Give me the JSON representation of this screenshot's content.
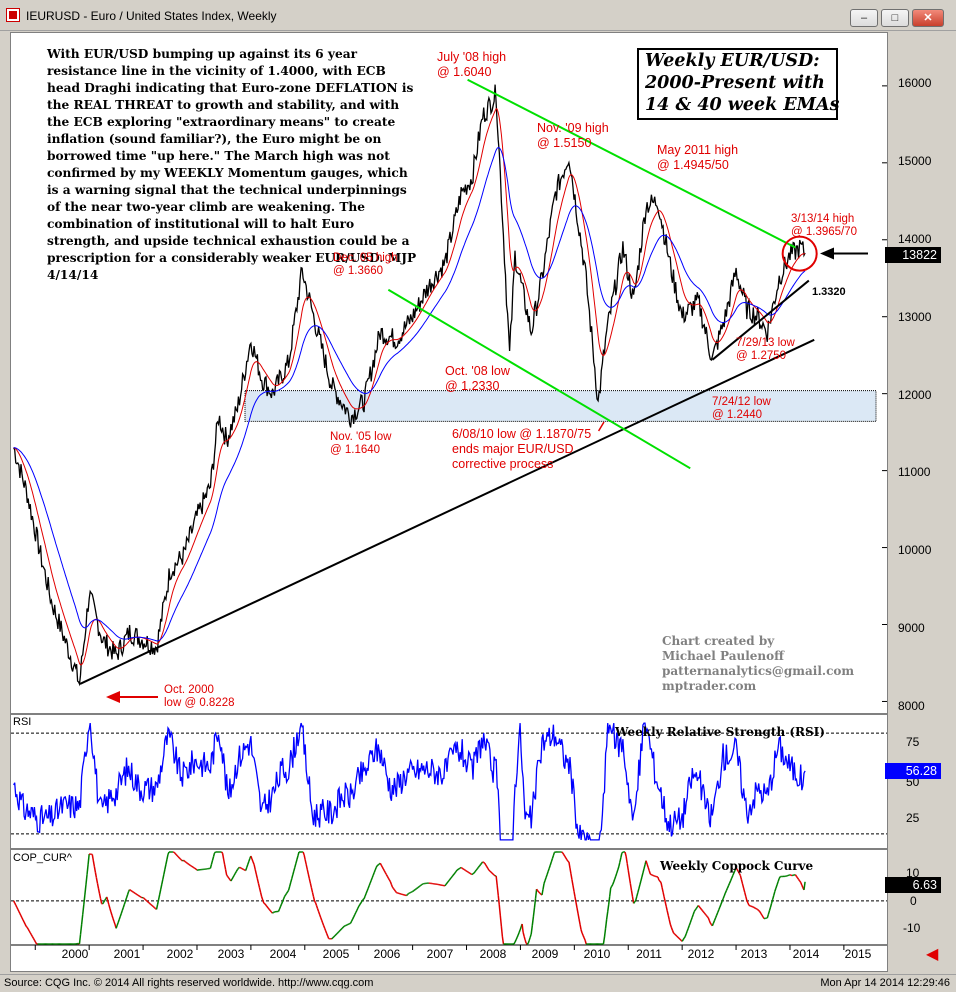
{
  "window": {
    "title": "IEURUSD - Euro / United States Index, Weekly",
    "buttons": [
      "minimize",
      "maximize",
      "close"
    ]
  },
  "status": {
    "left": "Source: CQG Inc. © 2014 All rights reserved worldwide. http://www.cqg.com",
    "right": "Mon Apr 14 2014 12:29:46"
  },
  "commentary": {
    "text": "With EUR/USD bumping up against its 6 year resistance line in the vicinity of 1.4000, with ECB head Draghi indicating that Euro-zone DEFLATION is the REAL THREAT to growth and stability, and with the ECB exploring \"extraordinary means\" to create inflation (sound familiar?), the Euro might be on borrowed time \"up here.\"  The March high was not confirmed by my WEEKLY Momentum gauges, which is a warning signal that the technical underpinnings of the near two-year climb are weakening. The combination of institutional will to halt Euro strength, and upside technical exhaustion could be a prescription for a considerably weaker EUR/USD. MJP  4/14/14"
  },
  "chart_title": {
    "line1": "Weekly EUR/USD:",
    "line2": "2000-Present with",
    "line3": "14 & 40 week EMAs"
  },
  "credit": {
    "line1": "Chart created by",
    "line2": "Michael Paulenoff",
    "line3": "patternanalytics@gmail.com",
    "line4": "mptrader.com"
  },
  "annotations": {
    "jul08": [
      "July '08 high",
      "@ 1.6040"
    ],
    "nov09": [
      "Nov. '09 high",
      "@ 1.5150"
    ],
    "may11": [
      "May 2011 high",
      "@ 1.4945/50"
    ],
    "mar14": [
      "3/13/14 high",
      "@ 1.3965/70"
    ],
    "dec05": [
      "Dec. 05 high",
      "@ 1.3660"
    ],
    "oct08": [
      "Oct. '08 low",
      "@ 1.2330"
    ],
    "jun10": [
      "6/08/10 low @ 1.1870/75",
      "ends major EUR/USD",
      "corrective process"
    ],
    "nov05": [
      "Nov. '05 low",
      "@ 1.1640"
    ],
    "jul13": [
      "7/29/13 low",
      "@ 1.2750"
    ],
    "jul12": [
      "7/24/12 low",
      "@ 1.2440"
    ],
    "oct00": [
      "Oct. 2000",
      "low @ 0.8228"
    ],
    "trend_value": "1.3320"
  },
  "panels": {
    "rsi": {
      "name": "RSI",
      "title": "Weekly Relative Strength (RSI)",
      "value": "56.28",
      "ticks": [
        "75",
        "50",
        "25"
      ]
    },
    "coppock": {
      "name": "COP_CUR^",
      "title": "Weekly Coppock Curve",
      "value": "6.63",
      "ticks": [
        "10",
        "0",
        "-10"
      ]
    }
  },
  "colors": {
    "price_bars": "#000000",
    "ema14": "#e00000",
    "ema40": "#0000ff",
    "resistance": "#00e000",
    "support": "#000000",
    "rsi_line": "#0000ff",
    "coppock_up": "#008000",
    "coppock_down": "#e00000",
    "annotation": "#e00000",
    "zone_fill": "#dbe8f5"
  },
  "chart_data": {
    "type": "line",
    "title": "Weekly EUR/USD: 2000-Present with 14 & 40 week EMAs",
    "xlabel": "",
    "ylabel": "",
    "x_ticks": [
      "2000",
      "2001",
      "2002",
      "2003",
      "2004",
      "2005",
      "2006",
      "2007",
      "2008",
      "2009",
      "2010",
      "2011",
      "2012",
      "2013",
      "2014",
      "2015"
    ],
    "y_ticks": [
      "16000",
      "15000",
      "14000",
      "13000",
      "12000",
      "11000",
      "10000",
      "9000",
      "8000"
    ],
    "ylim": [
      7850,
      16700
    ],
    "last_price": "13822",
    "series": [
      {
        "name": "EUR/USD (×10000)",
        "x": [
          1999.6,
          1999.85,
          2000.1,
          2000.3,
          2000.5,
          2000.75,
          2000.82,
          2001.0,
          2001.25,
          2001.5,
          2001.75,
          2002.0,
          2002.25,
          2002.5,
          2002.75,
          2003.0,
          2003.25,
          2003.4,
          2003.55,
          2003.75,
          2004.0,
          2004.2,
          2004.4,
          2004.7,
          2004.95,
          2005.2,
          2005.5,
          2005.85,
          2006.1,
          2006.4,
          2006.7,
          2007.0,
          2007.3,
          2007.6,
          2007.9,
          2008.1,
          2008.3,
          2008.55,
          2008.8,
          2008.9,
          2009.2,
          2009.4,
          2009.65,
          2009.9,
          2010.2,
          2010.4,
          2010.44,
          2010.6,
          2010.9,
          2011.1,
          2011.33,
          2011.55,
          2011.8,
          2012.0,
          2012.3,
          2012.56,
          2012.8,
          2013.0,
          2013.2,
          2013.4,
          2013.58,
          2013.8,
          2014.0,
          2014.2,
          2014.28
        ],
        "values": [
          11300,
          10700,
          9900,
          9300,
          8900,
          8400,
          8228,
          9400,
          8800,
          8600,
          8900,
          8800,
          8700,
          9700,
          9900,
          10400,
          10800,
          11700,
          11400,
          11800,
          12700,
          12200,
          12000,
          12400,
          13600,
          12900,
          12100,
          11700,
          11900,
          12800,
          12700,
          13000,
          13400,
          13700,
          14600,
          14800,
          15600,
          15900,
          12500,
          13800,
          12800,
          13500,
          14600,
          15100,
          13600,
          12200,
          11870,
          12800,
          13900,
          13200,
          14450,
          14500,
          13600,
          13000,
          13200,
          12440,
          13000,
          13600,
          13100,
          13000,
          12800,
          13500,
          13800,
          13900,
          13822
        ]
      }
    ],
    "overlays": [
      "14 week EMA",
      "40 week EMA"
    ],
    "rsi": {
      "ylim": [
        18,
        84
      ],
      "ticks": [
        75,
        50,
        25
      ],
      "last": 56.28
    },
    "coppock": {
      "ylim": [
        -15,
        17
      ],
      "ticks": [
        10,
        0,
        -10
      ],
      "last": 6.63
    }
  }
}
